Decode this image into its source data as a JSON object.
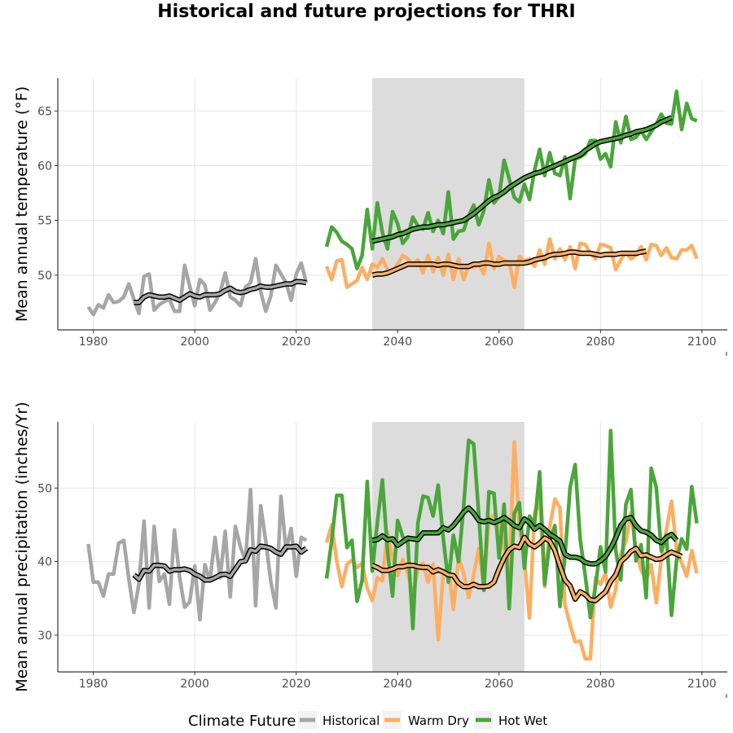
{
  "title": "Historical and future projections for THRI",
  "colors": {
    "Historical": "#a6a6a6",
    "Warm Dry": "#fdae61",
    "Hot Wet": "#4aa63a",
    "smooth_outline": "#000000",
    "shade": "#dcdcdc",
    "grid": "#e5e5e5"
  },
  "legend": {
    "title": "Climate Future",
    "entries": [
      "Historical",
      "Warm Dry",
      "Hot Wet"
    ],
    "placement": "bottom"
  },
  "chart_data": [
    {
      "type": "line",
      "ylabel": "Mean annual temperature (°F)",
      "xlabel": "",
      "xlim": [
        1973,
        2105
      ],
      "ylim": [
        45,
        68
      ],
      "x_ticks": [
        1980,
        2000,
        2020,
        2040,
        2060,
        2080,
        2100
      ],
      "y_ticks": [
        50,
        55,
        60,
        65
      ],
      "grid": true,
      "shaded_period": [
        2035,
        2065
      ],
      "series": [
        {
          "name": "Historical",
          "x_start": 1979,
          "values": [
            47.1,
            46.4,
            47.3,
            47.0,
            48.2,
            47.5,
            47.6,
            48.0,
            49.2,
            47.8,
            46.5,
            49.9,
            50.1,
            46.8,
            47.3,
            47.6,
            47.8,
            46.7,
            46.7,
            50.9,
            49.0,
            47.2,
            49.6,
            49.1,
            46.8,
            47.5,
            48.4,
            50.2,
            48.0,
            47.7,
            47.2,
            48.9,
            49.3,
            51.5,
            48.5,
            46.7,
            48.1,
            50.9,
            50.1,
            49.3,
            47.7,
            50.1,
            51.1,
            49.3
          ]
        },
        {
          "name": "Historical (moving average)",
          "x_start": 1988,
          "values": [
            47.5,
            47.5,
            48.0,
            48.2,
            48.1,
            48.0,
            48.0,
            48.1,
            47.9,
            47.7,
            48.0,
            48.3,
            48.1,
            48.0,
            48.2,
            48.2,
            48.2,
            48.3,
            48.6,
            48.8,
            48.5,
            48.4,
            48.5,
            48.7,
            48.8,
            49.0,
            48.9,
            48.9,
            49.0,
            49.1,
            49.2,
            49.2,
            49.4,
            49.4,
            49.3
          ]
        },
        {
          "name": "Warm Dry",
          "x_start": 2026,
          "values": [
            50.8,
            49.6,
            51.3,
            51.4,
            48.9,
            49.2,
            49.5,
            50.7,
            49.6,
            51.0,
            50.7,
            51.5,
            50.5,
            50.3,
            51.0,
            51.8,
            51.5,
            51.0,
            51.4,
            50.2,
            51.8,
            50.3,
            51.6,
            50.0,
            51.9,
            49.6,
            51.5,
            49.6,
            50.8,
            50.7,
            51.0,
            50.1,
            52.9,
            50.6,
            51.7,
            51.3,
            51.2,
            48.9,
            51.7,
            51.3,
            51.5,
            50.8,
            52.3,
            51.0,
            53.3,
            51.5,
            52.4,
            51.4,
            52.6,
            50.6,
            52.9,
            52.8,
            52.0,
            51.5,
            52.8,
            52.7,
            52.5,
            50.5,
            51.4,
            52.1,
            51.5,
            51.8,
            52.6,
            51.4,
            52.8,
            52.7,
            51.8,
            52.5,
            51.6,
            51.5,
            52.3,
            52.3,
            52.7,
            51.5
          ]
        },
        {
          "name": "Warm Dry (moving average)",
          "x_start": 2035,
          "values": [
            50.0,
            50.1,
            50.1,
            50.2,
            50.4,
            50.6,
            50.8,
            51.0,
            51.0,
            51.0,
            51.0,
            51.0,
            51.0,
            50.9,
            51.0,
            51.0,
            50.9,
            50.8,
            50.8,
            50.8,
            51.0,
            51.0,
            51.1,
            51.1,
            51.0,
            51.0,
            51.1,
            51.1,
            51.1,
            51.1,
            51.1,
            51.2,
            51.4,
            51.5,
            51.6,
            51.8,
            51.9,
            51.9,
            52.0,
            52.1,
            52.1,
            52.0,
            52.0,
            52.0,
            51.9,
            51.8,
            51.9,
            51.9,
            51.9,
            52.0,
            52.0,
            52.0,
            52.0,
            52.1,
            52.2
          ]
        },
        {
          "name": "Hot Wet",
          "x_start": 2026,
          "values": [
            52.6,
            54.4,
            53.9,
            53.1,
            52.8,
            52.4,
            50.6,
            51.8,
            56.0,
            52.4,
            56.6,
            53.9,
            52.4,
            55.8,
            54.7,
            52.9,
            53.5,
            55.3,
            54.5,
            54.2,
            55.7,
            54.0,
            55.0,
            53.8,
            57.6,
            53.3,
            54.0,
            54.1,
            55.4,
            56.4,
            54.6,
            55.9,
            58.7,
            56.6,
            57.2,
            60.5,
            58.8,
            57.1,
            56.7,
            58.3,
            56.9,
            59.6,
            61.5,
            59.1,
            61.2,
            59.3,
            59.1,
            60.8,
            57.0,
            60.6,
            60.8,
            61.1,
            62.3,
            62.3,
            60.6,
            61.1,
            59.9,
            64.0,
            62.1,
            64.5,
            62.4,
            62.6,
            63.2,
            62.4,
            63.1,
            63.8,
            64.7,
            63.9,
            63.8,
            66.8,
            63.3,
            65.7,
            64.3,
            64.1
          ]
        },
        {
          "name": "Hot Wet (moving average)",
          "x_start": 2035,
          "values": [
            53.1,
            53.2,
            53.3,
            53.4,
            53.5,
            53.7,
            53.8,
            54.0,
            54.2,
            54.3,
            54.4,
            54.4,
            54.5,
            54.6,
            54.6,
            54.7,
            54.8,
            54.9,
            55.0,
            55.3,
            55.6,
            56.0,
            56.4,
            56.8,
            57.1,
            57.3,
            57.6,
            58.0,
            58.3,
            58.6,
            58.9,
            59.1,
            59.3,
            59.4,
            59.6,
            59.8,
            60.0,
            60.2,
            60.4,
            60.6,
            60.8,
            61.0,
            61.4,
            61.7,
            62.0,
            62.2,
            62.3,
            62.4,
            62.5,
            62.6,
            62.8,
            62.9,
            63.1,
            63.2,
            63.3,
            63.5,
            63.7,
            64.0,
            64.2,
            64.4
          ]
        }
      ]
    },
    {
      "type": "line",
      "ylabel": "Mean annual precipitation (inches/Yr)",
      "xlabel": "",
      "xlim": [
        1973,
        2105
      ],
      "ylim": [
        25,
        59
      ],
      "x_ticks": [
        1980,
        2000,
        2020,
        2040,
        2060,
        2080,
        2100
      ],
      "y_ticks": [
        30,
        40,
        50
      ],
      "grid": true,
      "shaded_period": [
        2035,
        2065
      ],
      "series": [
        {
          "name": "Historical",
          "x_start": 1979,
          "values": [
            42.4,
            37.2,
            37.2,
            35.3,
            38.3,
            38.3,
            42.5,
            42.9,
            37.6,
            33.1,
            37.0,
            45.5,
            33.7,
            44.8,
            37.3,
            38.3,
            34.2,
            44.3,
            37.9,
            33.8,
            34.5,
            39.4,
            32.1,
            39.6,
            37.4,
            43.3,
            37.8,
            44.1,
            35.2,
            44.8,
            42.0,
            40.1,
            49.8,
            34.0,
            47.6,
            42.8,
            37.3,
            33.7,
            48.9,
            41.5,
            44.5,
            38.0,
            43.3,
            42.9
          ]
        },
        {
          "name": "Historical (moving average)",
          "x_start": 1988,
          "values": [
            38.2,
            37.6,
            38.8,
            38.7,
            39.5,
            39.5,
            39.4,
            38.7,
            38.9,
            38.9,
            39.0,
            38.8,
            38.3,
            38.0,
            37.5,
            37.5,
            37.8,
            38.2,
            38.3,
            38.0,
            39.0,
            40.0,
            40.1,
            41.6,
            41.4,
            42.1,
            42.0,
            41.8,
            41.3,
            41.0,
            42.0,
            42.0,
            42.1,
            41.3,
            41.8
          ]
        },
        {
          "name": "Warm Dry",
          "x_start": 2026,
          "values": [
            42.6,
            45.0,
            40.1,
            36.6,
            39.6,
            40.2,
            39.2,
            39.8,
            36.4,
            34.7,
            37.8,
            37.4,
            44.0,
            40.5,
            38.1,
            40.3,
            38.5,
            35.3,
            39.0,
            39.8,
            37.2,
            39.7,
            29.4,
            38.4,
            39.3,
            33.5,
            40.5,
            38.5,
            35.1,
            38.2,
            41.8,
            36.5,
            45.8,
            46.3,
            45.3,
            41.7,
            38.9,
            56.3,
            44.7,
            40.4,
            32.3,
            46.7,
            48.1,
            36.6,
            44.7,
            48.5,
            47.3,
            34.1,
            31.4,
            29.1,
            29.2,
            26.8,
            26.8,
            37.8,
            36.9,
            38.4,
            33.8,
            36.2,
            41.0,
            42.7,
            46.7,
            41.6,
            38.9,
            37.4,
            39.6,
            34.4,
            40.4,
            44.3,
            48.2,
            41.7,
            39.8,
            38.0,
            41.5,
            38.4
          ]
        },
        {
          "name": "Warm Dry (moving average)",
          "x_start": 2035,
          "values": [
            39.5,
            39.2,
            38.8,
            38.8,
            39.0,
            39.3,
            39.3,
            39.5,
            39.5,
            39.3,
            39.2,
            39.2,
            38.6,
            38.9,
            38.6,
            38.2,
            38.1,
            37.1,
            36.6,
            36.6,
            36.9,
            36.6,
            36.6,
            36.7,
            37.2,
            39.0,
            40.5,
            41.6,
            42.1,
            41.9,
            43.3,
            42.4,
            42.0,
            42.5,
            43.2,
            42.8,
            41.5,
            39.4,
            37.5,
            36.7,
            34.9,
            35.9,
            35.5,
            34.8,
            34.7,
            35.3,
            35.9,
            37.3,
            38.2,
            40.0,
            40.6,
            41.4,
            41.8,
            40.8,
            40.9,
            40.6,
            40.3,
            40.4,
            40.9,
            41.3,
            41.0,
            40.7
          ]
        },
        {
          "name": "Hot Wet",
          "x_start": 2026,
          "values": [
            37.7,
            42.9,
            49.0,
            49.0,
            41.9,
            42.9,
            34.6,
            37.4,
            50.9,
            38.7,
            45.3,
            51.1,
            41.5,
            35.3,
            45.6,
            43.4,
            42.6,
            30.9,
            45.2,
            48.9,
            48.7,
            46.2,
            50.4,
            43.1,
            37.2,
            43.6,
            40.0,
            47.4,
            56.5,
            56.0,
            46.3,
            36.1,
            49.5,
            49.3,
            40.5,
            47.8,
            33.6,
            46.6,
            48.0,
            39.1,
            46.2,
            45.1,
            52.2,
            36.9,
            42.7,
            44.9,
            33.9,
            40.8,
            50.1,
            53.2,
            43.0,
            38.1,
            32.4,
            36.6,
            42.0,
            38.6,
            57.8,
            41.5,
            37.5,
            47.8,
            49.8,
            40.1,
            42.3,
            35.1,
            52.7,
            50.1,
            41.4,
            43.6,
            32.7,
            40.2,
            43.1,
            41.7,
            50.2,
            45.2
          ]
        },
        {
          "name": "Hot Wet (moving average)",
          "x_start": 2035,
          "values": [
            42.9,
            43.0,
            43.5,
            43.0,
            43.1,
            42.2,
            42.7,
            43.2,
            43.1,
            43.0,
            43.9,
            43.9,
            43.9,
            43.9,
            44.6,
            44.3,
            44.9,
            45.8,
            46.7,
            47.3,
            46.6,
            45.6,
            45.4,
            45.6,
            45.3,
            45.6,
            46.0,
            45.5,
            44.9,
            44.6,
            45.8,
            45.3,
            44.4,
            44.9,
            44.4,
            43.7,
            43.3,
            42.8,
            41.0,
            40.6,
            40.6,
            40.4,
            39.9,
            39.7,
            39.7,
            40.1,
            40.7,
            41.8,
            43.2,
            44.9,
            45.8,
            46.0,
            44.9,
            44.2,
            44.0,
            43.6,
            42.9,
            42.6,
            43.3,
            43.7,
            42.9
          ]
        }
      ]
    }
  ]
}
